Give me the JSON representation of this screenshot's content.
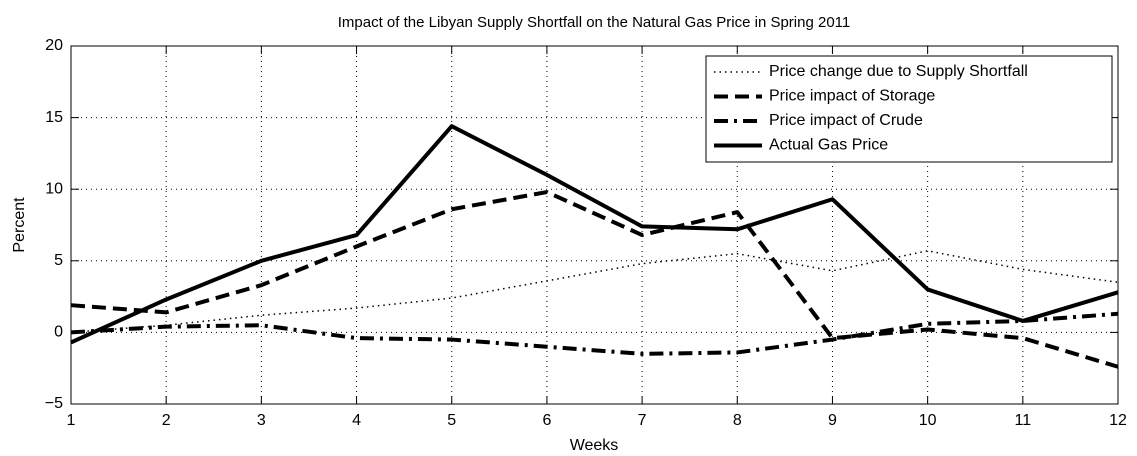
{
  "chart_data": {
    "type": "line",
    "title": "Impact of the Libyan Supply Shortfall on the Natural Gas Price in Spring 2011",
    "x_label": "Weeks",
    "y_label": "Percent",
    "x": [
      1,
      2,
      3,
      4,
      5,
      6,
      7,
      8,
      9,
      10,
      11,
      12
    ],
    "xlim": [
      1,
      12
    ],
    "xticks": [
      1,
      2,
      3,
      4,
      5,
      6,
      7,
      8,
      9,
      10,
      11,
      12
    ],
    "ylim": [
      -5,
      20
    ],
    "yticks": [
      {
        "value": -5,
        "label": "−5"
      },
      0,
      5,
      10,
      15,
      20
    ],
    "grid": true,
    "legend": "top-right",
    "series": [
      {
        "name": "Price change due to Supply Shortfall",
        "color": "#000000",
        "dash": "dotted",
        "values": [
          0,
          0.5,
          1.2,
          1.7,
          2.4,
          3.6,
          4.8,
          5.5,
          4.3,
          5.7,
          4.4,
          3.5
        ]
      },
      {
        "name": "Price impact of Storage",
        "color": "#000000",
        "dash": "dashed",
        "values": [
          1.9,
          1.4,
          3.3,
          6.0,
          8.6,
          9.8,
          6.8,
          8.4,
          -0.4,
          0.2,
          -0.4,
          -2.4
        ]
      },
      {
        "name": "Price impact of Crude",
        "color": "#000000",
        "dash": "dashdot",
        "values": [
          0,
          0.4,
          0.5,
          -0.4,
          -0.5,
          -1.0,
          -1.5,
          -1.4,
          -0.5,
          0.6,
          0.8,
          1.3
        ]
      },
      {
        "name": "Actual Gas Price",
        "color": "#000000",
        "dash": "solid",
        "values": [
          -0.7,
          2.3,
          5.0,
          6.8,
          14.4,
          11.0,
          7.4,
          7.2,
          9.3,
          3.0,
          0.8,
          2.8
        ]
      }
    ]
  }
}
